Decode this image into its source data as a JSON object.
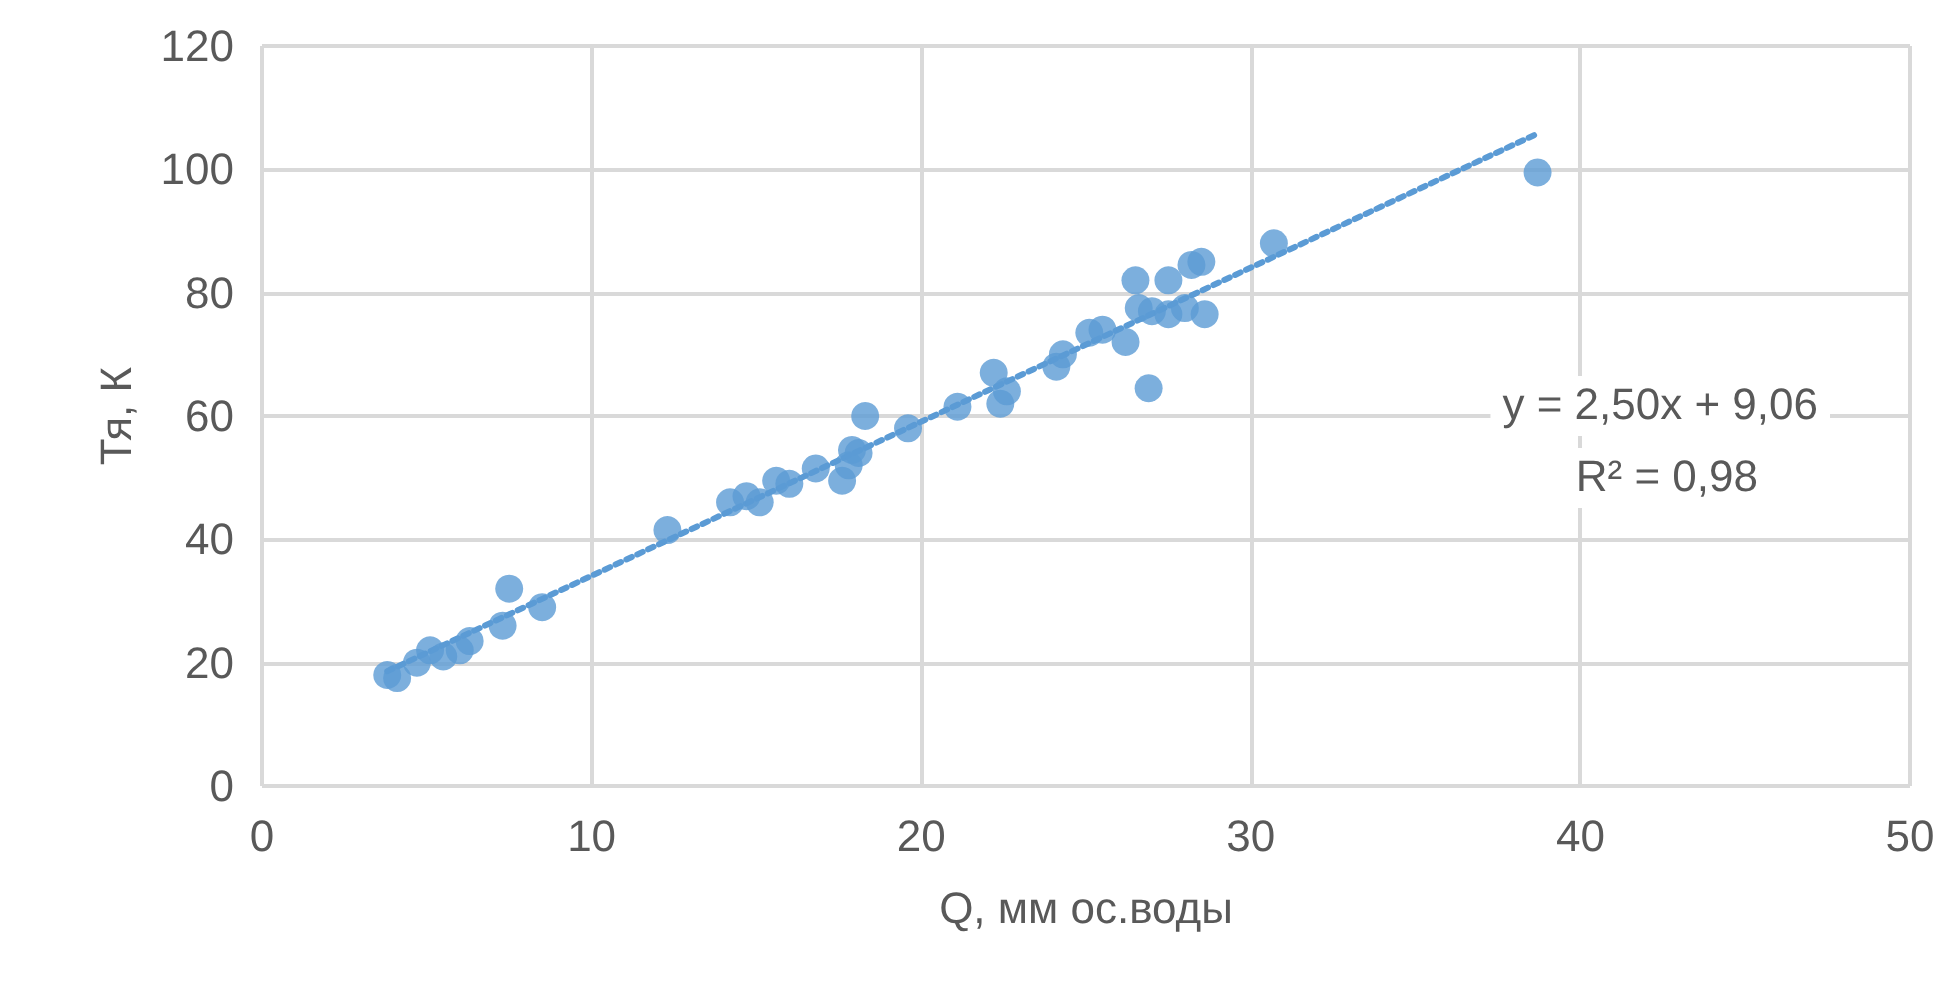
{
  "chart_data": {
    "type": "scatter",
    "xlabel": "Q, мм ос.воды",
    "ylabel": "Тя, К",
    "series": [
      {
        "color": "#5b9bd5",
        "marker": "circle",
        "x": [
          3.8,
          4.1,
          4.7,
          5.1,
          5.5,
          6.0,
          6.3,
          7.3,
          7.5,
          8.5,
          12.3,
          14.2,
          14.7,
          15.1,
          15.6,
          16.0,
          16.8,
          17.6,
          17.8,
          17.9,
          18.1,
          18.3,
          19.6,
          21.1,
          22.2,
          22.4,
          22.6,
          24.1,
          24.3,
          25.1,
          25.5,
          26.2,
          26.5,
          26.6,
          27.0,
          26.9,
          27.5,
          27.5,
          28.0,
          28.2,
          28.5,
          28.6,
          30.7,
          38.7
        ],
        "values": [
          18,
          17.5,
          20,
          22,
          21,
          22,
          23.5,
          26,
          32,
          29,
          41.5,
          46,
          47,
          46,
          49.5,
          49,
          51.5,
          49.5,
          52,
          54.5,
          54,
          60,
          58,
          61.5,
          67,
          62,
          64,
          68,
          70,
          73.5,
          74,
          72,
          82,
          77.5,
          77,
          64.5,
          82,
          76.5,
          77.5,
          84.5,
          85,
          76.5,
          88,
          99.5
        ]
      },
      {
        "type": "line",
        "color": "#5b9bd5",
        "line_style": "dotted",
        "marker": "none",
        "x": [
          3.8,
          38.7
        ],
        "values": [
          18.6,
          105.8
        ]
      }
    ],
    "xlim": [
      0,
      50
    ],
    "xticks": [
      0,
      10,
      20,
      30,
      40,
      50
    ],
    "ylim": [
      0,
      120
    ],
    "yticks": [
      0,
      20,
      40,
      60,
      80,
      100,
      120
    ],
    "grid": true,
    "annotations": [
      "y = 2,50x + 9,06",
      "R² = 0,98"
    ]
  }
}
